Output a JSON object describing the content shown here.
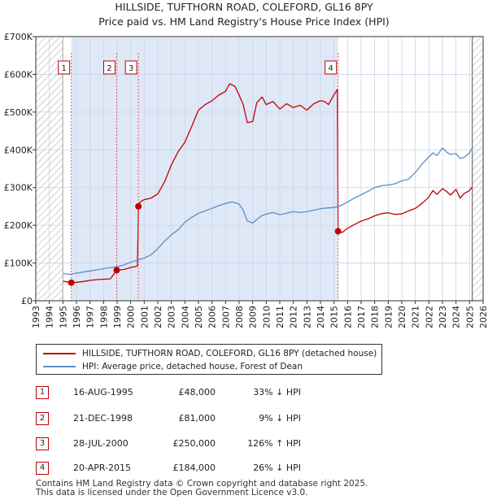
{
  "title_line1": "HILLSIDE, TUFTHORN ROAD, COLEFORD, GL16 8PY",
  "title_line2": "Price paid vs. HM Land Registry's House Price Index (HPI)",
  "colors": {
    "property_line": "#c00000",
    "hpi_line": "#5a8fc8",
    "shade": "#dfe8f7",
    "hatch": "#b0b0b0",
    "marker_line": "#e06060",
    "grid": "#c8d4e6"
  },
  "chart_data": {
    "type": "line",
    "xlabel": "",
    "ylabel": "",
    "xlim": [
      1993,
      2026
    ],
    "ylim": [
      0,
      700000
    ],
    "x_ticks": [
      1993,
      1994,
      1995,
      1996,
      1997,
      1998,
      1999,
      2000,
      2001,
      2002,
      2003,
      2004,
      2005,
      2006,
      2007,
      2008,
      2009,
      2010,
      2011,
      2012,
      2013,
      2014,
      2015,
      2016,
      2017,
      2018,
      2019,
      2020,
      2021,
      2022,
      2023,
      2024,
      2025,
      2026
    ],
    "y_ticks": [
      {
        "value": 0,
        "label": "£0"
      },
      {
        "value": 100000,
        "label": "£100K"
      },
      {
        "value": 200000,
        "label": "£200K"
      },
      {
        "value": 300000,
        "label": "£300K"
      },
      {
        "value": 400000,
        "label": "£400K"
      },
      {
        "value": 500000,
        "label": "£500K"
      },
      {
        "value": 600000,
        "label": "£600K"
      },
      {
        "value": 700000,
        "label": "£700K"
      }
    ],
    "data_range": [
      1995.0,
      2025.2
    ],
    "shaded_ranges": [
      [
        1995.62,
        2015.3
      ]
    ],
    "series": [
      {
        "name": "HILLSIDE, TUFTHORN ROAD, COLEFORD, GL16 8PY (detached house)",
        "color": "#c00000",
        "x": [
          1995.0,
          1995.3,
          1995.62,
          1996.0,
          1996.5,
          1997.0,
          1997.5,
          1998.0,
          1998.5,
          1998.97,
          1999.5,
          2000.0,
          2000.5,
          2000.57,
          2000.7,
          2001.0,
          2001.5,
          2002.0,
          2002.5,
          2003.0,
          2003.5,
          2004.0,
          2004.5,
          2005.0,
          2005.5,
          2006.0,
          2006.5,
          2007.0,
          2007.3,
          2007.7,
          2008.0,
          2008.3,
          2008.6,
          2009.0,
          2009.3,
          2009.7,
          2010.0,
          2010.5,
          2011.0,
          2011.5,
          2012.0,
          2012.5,
          2013.0,
          2013.5,
          2014.0,
          2014.3,
          2014.6,
          2014.9,
          2015.25,
          2015.3,
          2015.6,
          2016.0,
          2016.5,
          2017.0,
          2017.5,
          2018.0,
          2018.5,
          2019.0,
          2019.5,
          2020.0,
          2020.5,
          2021.0,
          2021.5,
          2022.0,
          2022.3,
          2022.6,
          2023.0,
          2023.3,
          2023.6,
          2024.0,
          2024.3,
          2024.6,
          2025.0,
          2025.2
        ],
        "y": [
          52000,
          50000,
          48000,
          49000,
          51000,
          54000,
          56000,
          57000,
          58000,
          81000,
          83000,
          88000,
          92000,
          250000,
          262000,
          268000,
          272000,
          283000,
          315000,
          360000,
          395000,
          420000,
          462000,
          505000,
          520000,
          530000,
          545000,
          555000,
          575000,
          568000,
          545000,
          520000,
          472000,
          475000,
          525000,
          540000,
          520000,
          528000,
          508000,
          522000,
          512000,
          518000,
          505000,
          522000,
          530000,
          528000,
          520000,
          540000,
          560000,
          184000,
          181000,
          192000,
          202000,
          211000,
          217000,
          225000,
          231000,
          233000,
          229000,
          230000,
          238000,
          245000,
          258000,
          275000,
          292000,
          282000,
          297000,
          290000,
          280000,
          295000,
          272000,
          284000,
          292000,
          302000
        ]
      },
      {
        "name": "HPI: Average price, detached house, Forest of Dean",
        "color": "#5a8fc8",
        "x": [
          1995.0,
          1995.5,
          1996.0,
          1996.5,
          1997.0,
          1997.5,
          1998.0,
          1998.5,
          1999.0,
          1999.5,
          2000.0,
          2000.5,
          2001.0,
          2001.5,
          2002.0,
          2002.5,
          2003.0,
          2003.5,
          2004.0,
          2004.5,
          2005.0,
          2005.5,
          2006.0,
          2006.5,
          2007.0,
          2007.5,
          2008.0,
          2008.3,
          2008.6,
          2009.0,
          2009.3,
          2009.6,
          2010.0,
          2010.5,
          2011.0,
          2011.5,
          2012.0,
          2012.5,
          2013.0,
          2013.5,
          2014.0,
          2014.5,
          2015.0,
          2015.5,
          2016.0,
          2016.5,
          2017.0,
          2017.5,
          2018.0,
          2018.5,
          2019.0,
          2019.5,
          2020.0,
          2020.5,
          2021.0,
          2021.5,
          2022.0,
          2022.3,
          2022.6,
          2023.0,
          2023.3,
          2023.6,
          2024.0,
          2024.3,
          2024.6,
          2025.0,
          2025.2
        ],
        "y": [
          72000,
          70000,
          73000,
          76000,
          79000,
          82000,
          85000,
          88000,
          90000,
          95000,
          102000,
          108000,
          113000,
          122000,
          138000,
          158000,
          175000,
          188000,
          208000,
          221000,
          232000,
          238000,
          245000,
          252000,
          258000,
          262000,
          256000,
          240000,
          212000,
          206000,
          215000,
          224000,
          230000,
          234000,
          228000,
          232000,
          236000,
          234000,
          236000,
          240000,
          244000,
          246000,
          247000,
          252000,
          262000,
          272000,
          281000,
          290000,
          300000,
          305000,
          307000,
          310000,
          318000,
          322000,
          340000,
          362000,
          381000,
          392000,
          385000,
          405000,
          394000,
          388000,
          390000,
          377000,
          380000,
          392000,
          405000
        ]
      }
    ],
    "transactions": [
      {
        "id": "1",
        "x": 1995.62,
        "y": 48000,
        "date": "16-AUG-1995",
        "price": "£48,000",
        "hpi": "33% ↓ HPI"
      },
      {
        "id": "2",
        "x": 1998.97,
        "y": 81000,
        "date": "21-DEC-1998",
        "price": "£81,000",
        "hpi": "9% ↓ HPI"
      },
      {
        "id": "3",
        "x": 2000.57,
        "y": 250000,
        "date": "28-JUL-2000",
        "price": "£250,000",
        "hpi": "126% ↑ HPI"
      },
      {
        "id": "4",
        "x": 2015.3,
        "y": 184000,
        "date": "20-APR-2015",
        "price": "£184,000",
        "hpi": "26% ↓ HPI"
      }
    ]
  },
  "legend": {
    "property_label": "HILLSIDE, TUFTHORN ROAD, COLEFORD, GL16 8PY (detached house)",
    "hpi_label": "HPI: Average price, detached house, Forest of Dean"
  },
  "footer": {
    "line1": "Contains HM Land Registry data © Crown copyright and database right 2025.",
    "line2": "This data is licensed under the Open Government Licence v3.0."
  }
}
